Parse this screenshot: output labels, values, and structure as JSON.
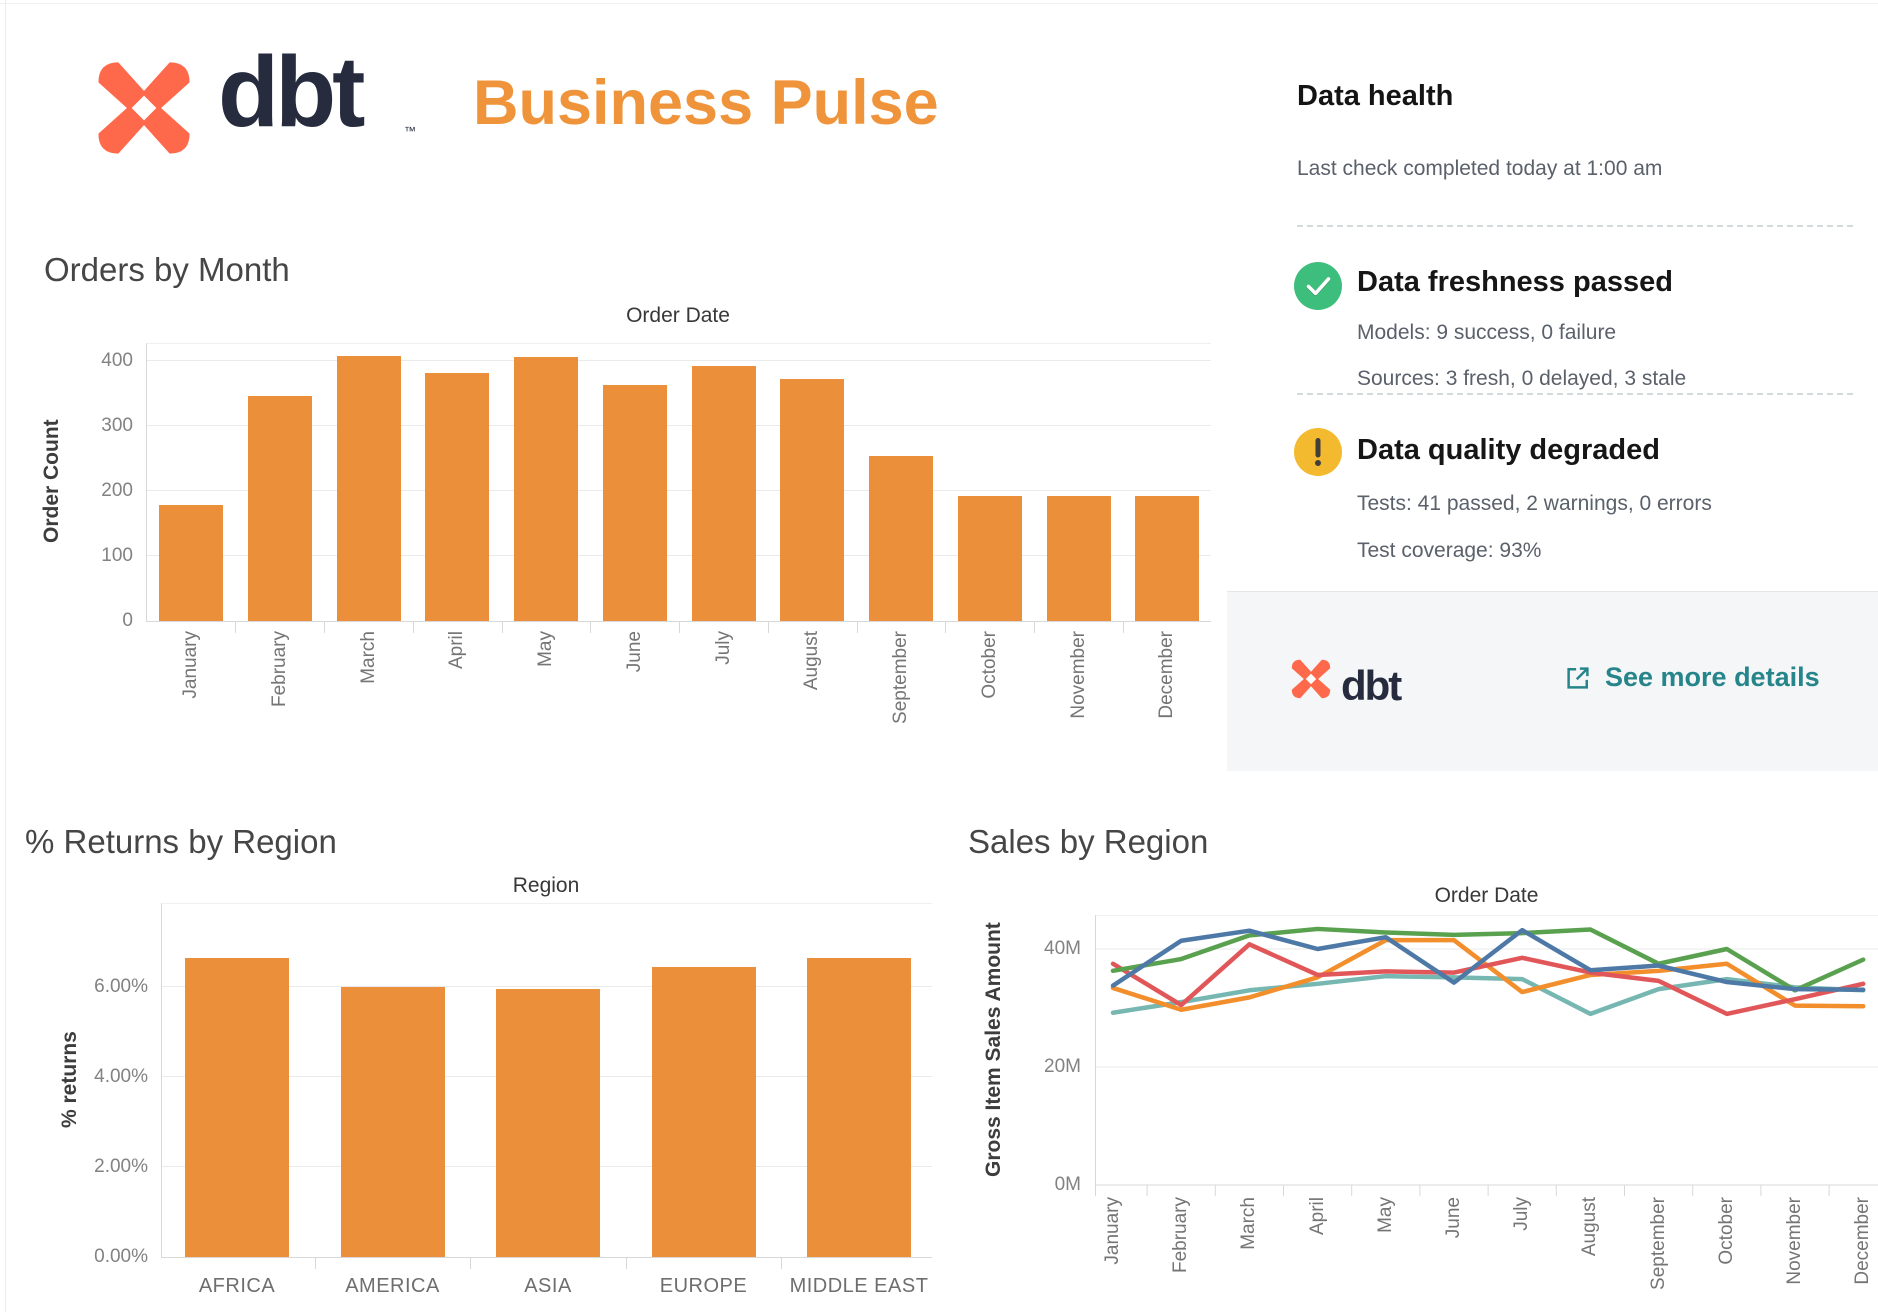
{
  "header": {
    "brand": "dbt",
    "trademark": "™",
    "title": "Business Pulse",
    "brand_color": "#262B3E",
    "logo_color": "#FF694B",
    "title_color": "#F0943C"
  },
  "data_health": {
    "title": "Data health",
    "subtitle": "Last check completed today at 1:00 am",
    "freshness": {
      "icon": "check-circle",
      "icon_color": "#3EBE7C",
      "title": "Data freshness passed",
      "line1": "Models: 9 success, 0 failure",
      "line2": "Sources: 3 fresh, 0 delayed, 3 stale"
    },
    "quality": {
      "icon": "warning-circle",
      "icon_color": "#F3BA2F",
      "title": "Data quality degraded",
      "line1": "Tests: 41 passed, 2 warnings, 0 errors",
      "line2": "Test coverage: 93%"
    },
    "footer": {
      "brand": "dbt",
      "link_label": "See more details",
      "link_color": "#26858A",
      "background": "#F4F6F7"
    }
  },
  "chart_data": [
    {
      "id": "orders-by-month",
      "type": "bar",
      "title": "Orders by Month",
      "axis_title": "Order Date",
      "xlabel": "Order Date",
      "ylabel": "Order Count",
      "categories": [
        "January",
        "February",
        "March",
        "April",
        "May",
        "June",
        "July",
        "August",
        "September",
        "October",
        "November",
        "December"
      ],
      "values": [
        178,
        346,
        408,
        382,
        406,
        363,
        392,
        372,
        254,
        193,
        192,
        193
      ],
      "yticks": [
        0,
        100,
        200,
        300,
        400
      ],
      "ytick_labels": [
        "0",
        "100",
        "200",
        "300",
        "400"
      ],
      "ylim": [
        0,
        425
      ],
      "bar_color": "#EC8F3B",
      "grid": true,
      "legend": false
    },
    {
      "id": "returns-by-region",
      "type": "bar",
      "title": "% Returns by Region",
      "axis_title": "Region",
      "xlabel": "Region",
      "ylabel": "% returns",
      "categories": [
        "AFRICA",
        "AMERICA",
        "ASIA",
        "EUROPE",
        "MIDDLE EAST"
      ],
      "values": [
        6.65,
        6.0,
        5.95,
        6.45,
        6.65
      ],
      "yticks": [
        0,
        2,
        4,
        6
      ],
      "ytick_labels": [
        "0.00%",
        "2.00%",
        "4.00%",
        "6.00%"
      ],
      "ylim": [
        0,
        7.8
      ],
      "bar_color": "#EC8F3B",
      "grid": true,
      "legend": false
    },
    {
      "id": "sales-by-region",
      "type": "line",
      "title": "Sales by Region",
      "axis_title": "Order Date",
      "xlabel": "Order Date",
      "ylabel": "Gross Item Sales Amount",
      "x": [
        "January",
        "February",
        "March",
        "April",
        "May",
        "June",
        "July",
        "August",
        "September",
        "October",
        "November",
        "December"
      ],
      "yticks": [
        0,
        20,
        40
      ],
      "ytick_labels": [
        "0M",
        "20M",
        "40M"
      ],
      "ylim": [
        0,
        46
      ],
      "unit": "M",
      "grid": true,
      "legend": false,
      "series": [
        {
          "name": "teal",
          "color": "#76B7B2",
          "values": [
            29.2,
            31.0,
            33.0,
            34.1,
            35.4,
            35.2,
            34.9,
            29.0,
            33.2,
            34.9,
            33.5,
            33.0
          ]
        },
        {
          "name": "orange",
          "color": "#F28E2B",
          "values": [
            33.4,
            29.7,
            31.8,
            35.2,
            41.5,
            41.5,
            32.7,
            35.6,
            36.3,
            37.5,
            30.4,
            30.3
          ]
        },
        {
          "name": "red",
          "color": "#E15759",
          "values": [
            37.5,
            30.5,
            40.8,
            35.6,
            36.2,
            36.0,
            38.5,
            36.0,
            34.6,
            29.0,
            31.5,
            34.1
          ]
        },
        {
          "name": "green",
          "color": "#59A14F",
          "values": [
            36.3,
            38.3,
            42.3,
            43.4,
            42.8,
            42.4,
            42.7,
            43.3,
            37.5,
            40.0,
            33.0,
            38.2
          ]
        },
        {
          "name": "blue",
          "color": "#4E79A7",
          "values": [
            33.8,
            41.4,
            43.1,
            40.0,
            42.0,
            34.3,
            43.2,
            36.4,
            37.2,
            34.4,
            33.2,
            33.1
          ]
        }
      ]
    }
  ]
}
